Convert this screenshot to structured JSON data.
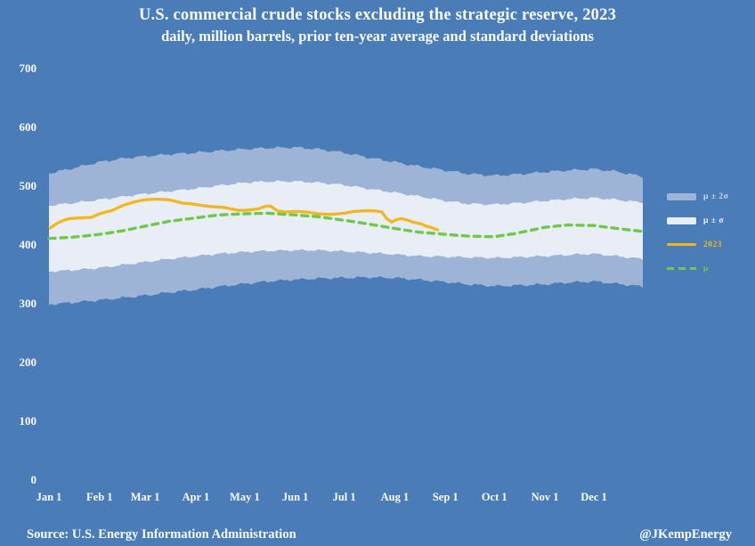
{
  "title": {
    "line1": "U.S. commercial crude stocks excluding the strategic reserve, 2023",
    "line2": "daily, million barrels, prior ten-year average and standard deviations"
  },
  "footer": {
    "source": "Source: U.S. Energy Information Administration",
    "handle": "@JKempEnergy"
  },
  "colors": {
    "background": "#4a7cb7",
    "band_outer": "#9db4d6",
    "band_inner": "#e9eef6",
    "line_2023": "#f2b61e",
    "line_mean": "#6ec849",
    "text": "#fbfcff",
    "legend_outer_label": "#ccd9ec",
    "legend_inner_label": "#f2f5fa"
  },
  "legend": {
    "position": "right",
    "items": [
      {
        "label": "μ ± 2σ",
        "swatch": "band-outer"
      },
      {
        "label": "μ ± σ",
        "swatch": "band-inner"
      },
      {
        "label": "2023",
        "swatch": "line-solid"
      },
      {
        "label": "μ",
        "swatch": "line-dashed"
      }
    ]
  },
  "chart_data": {
    "type": "area",
    "title": "U.S. commercial crude stocks excluding the strategic reserve, 2023",
    "subtitle": "daily, million barrels, prior ten-year average and standard deviations",
    "xlabel": "",
    "ylabel": "million barrels",
    "grid": false,
    "ylim": [
      0,
      700
    ],
    "y_ticks": [
      700,
      600,
      500,
      400,
      300,
      200,
      100,
      0
    ],
    "x_ticks": [
      {
        "day": 1,
        "label": "Jan 1"
      },
      {
        "day": 32,
        "label": "Feb 1"
      },
      {
        "day": 60,
        "label": "Mar 1"
      },
      {
        "day": 91,
        "label": "Apr 1"
      },
      {
        "day": 121,
        "label": "May 1"
      },
      {
        "day": 152,
        "label": "Jun 1"
      },
      {
        "day": 182,
        "label": "Jul 1"
      },
      {
        "day": 213,
        "label": "Aug 1"
      },
      {
        "day": 244,
        "label": "Sep 1"
      },
      {
        "day": 274,
        "label": "Oct 1"
      },
      {
        "day": 305,
        "label": "Nov 1"
      },
      {
        "day": 335,
        "label": "Dec 1"
      }
    ],
    "bands": {
      "note": "prior ten-year average (mu) plus/minus 1 and 2 standard deviations, million barrels, sampled by day of year",
      "days": [
        1,
        15,
        32,
        46,
        60,
        74,
        91,
        105,
        121,
        135,
        152,
        166,
        182,
        196,
        213,
        227,
        244,
        258,
        274,
        288,
        305,
        319,
        335,
        349,
        365
      ],
      "mu_plus_2sigma": [
        522,
        530,
        541,
        547,
        551,
        554,
        557,
        560,
        563,
        565,
        566,
        563,
        557,
        549,
        541,
        534,
        527,
        521,
        518,
        520,
        524,
        527,
        529,
        525,
        516
      ],
      "mu_plus_sigma": [
        467,
        471,
        477,
        482,
        487,
        491,
        496,
        501,
        506,
        508,
        508,
        506,
        502,
        496,
        489,
        483,
        475,
        470,
        469,
        471,
        475,
        478,
        480,
        477,
        472
      ],
      "mu_minus_sigma": [
        355,
        357,
        361,
        366,
        371,
        376,
        381,
        385,
        388,
        390,
        391,
        391,
        389,
        387,
        384,
        381,
        380,
        379,
        378,
        379,
        381,
        383,
        385,
        381,
        376
      ],
      "mu_minus_2sigma": [
        299,
        302,
        306,
        310,
        314,
        319,
        324,
        329,
        334,
        338,
        341,
        343,
        344,
        345,
        344,
        341,
        337,
        333,
        330,
        331,
        333,
        336,
        338,
        334,
        329
      ]
    },
    "mean": {
      "name": "μ",
      "days": [
        1,
        15,
        32,
        46,
        60,
        74,
        91,
        105,
        121,
        135,
        152,
        166,
        182,
        196,
        213,
        227,
        244,
        258,
        274,
        288,
        305,
        319,
        335,
        349,
        365
      ],
      "values": [
        411,
        413,
        418,
        424,
        432,
        440,
        446,
        451,
        453,
        454,
        451,
        448,
        442,
        436,
        428,
        422,
        418,
        415,
        414,
        420,
        430,
        434,
        433,
        428,
        423
      ]
    },
    "series_2023": {
      "name": "2023",
      "points_day_value": [
        [
          1,
          428
        ],
        [
          3,
          431
        ],
        [
          6,
          437
        ],
        [
          10,
          442
        ],
        [
          14,
          445
        ],
        [
          20,
          446
        ],
        [
          27,
          447
        ],
        [
          32,
          453
        ],
        [
          36,
          456
        ],
        [
          40,
          459
        ],
        [
          46,
          467
        ],
        [
          53,
          473
        ],
        [
          60,
          477
        ],
        [
          67,
          478
        ],
        [
          74,
          477
        ],
        [
          79,
          474
        ],
        [
          83,
          471
        ],
        [
          88,
          470
        ],
        [
          95,
          467
        ],
        [
          102,
          465
        ],
        [
          108,
          464
        ],
        [
          113,
          461
        ],
        [
          117,
          459
        ],
        [
          121,
          459
        ],
        [
          126,
          460
        ],
        [
          130,
          462
        ],
        [
          134,
          466
        ],
        [
          137,
          466
        ],
        [
          141,
          458
        ],
        [
          146,
          456
        ],
        [
          152,
          457
        ],
        [
          159,
          456
        ],
        [
          166,
          453
        ],
        [
          173,
          452
        ],
        [
          179,
          453
        ],
        [
          182,
          454
        ],
        [
          188,
          457
        ],
        [
          194,
          458
        ],
        [
          201,
          458
        ],
        [
          205,
          456
        ],
        [
          208,
          445
        ],
        [
          211,
          439
        ],
        [
          214,
          443
        ],
        [
          217,
          445
        ],
        [
          221,
          442
        ],
        [
          225,
          438
        ],
        [
          229,
          436
        ],
        [
          232,
          432
        ],
        [
          235,
          430
        ],
        [
          238,
          427
        ],
        [
          240,
          425
        ]
      ]
    }
  }
}
